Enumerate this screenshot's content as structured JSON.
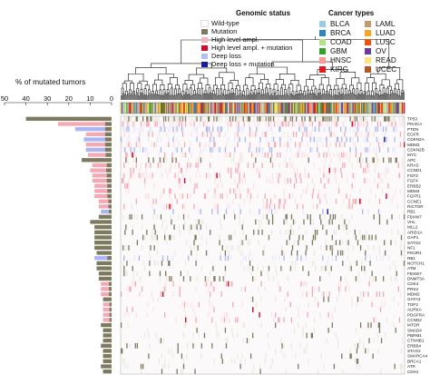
{
  "chart_data": {
    "type": "heatmap",
    "title": "",
    "xlabel": "",
    "ylabel": "",
    "bar_panel": {
      "title": "% of mutated tumors",
      "axis_ticks": [
        "50",
        "40",
        "30",
        "20",
        "10",
        "0"
      ],
      "xlim": [
        50,
        0
      ]
    },
    "genomic_status_legend": {
      "title": "Genomic status",
      "entries": [
        {
          "label": "Wild-type",
          "color": "#ffffff"
        },
        {
          "label": "Mutation",
          "color": "#7d7a60"
        },
        {
          "label": "High level ampl.",
          "color": "#f6b6bf"
        },
        {
          "label": "High level ampl. + mutation",
          "color": "#c8102e"
        },
        {
          "label": "Deep loss",
          "color": "#b3bff5"
        },
        {
          "label": "Deep loss + mutation",
          "color": "#1a1aa0"
        }
      ]
    },
    "cancer_types_legend": {
      "title": "Cancer types",
      "entries": [
        {
          "label": "BLCA",
          "color": "#9ecae1"
        },
        {
          "label": "LAML",
          "color": "#c49a6c"
        },
        {
          "label": "BRCA",
          "color": "#3182bd"
        },
        {
          "label": "LUAD",
          "color": "#f5a623"
        },
        {
          "label": "COAD",
          "color": "#b2df8a"
        },
        {
          "label": "LUSC",
          "color": "#e6550d"
        },
        {
          "label": "GBM",
          "color": "#33a02c"
        },
        {
          "label": "OV",
          "color": "#6a3d9a"
        },
        {
          "label": "HNSC",
          "color": "#fb9a99"
        },
        {
          "label": "READ",
          "color": "#ffe27a"
        },
        {
          "label": "KIRC",
          "color": "#e31a1c"
        },
        {
          "label": "UCEC",
          "color": "#b15928"
        }
      ]
    },
    "genes": [
      "TP53",
      "PIK3CA",
      "PTEN",
      "EGFR",
      "CDKN2A",
      "MDM2",
      "CDKN2B",
      "MYC",
      "APC",
      "KRAS",
      "CCND1",
      "FGF3",
      "FGF4",
      "ERBB2",
      "MDM4",
      "FGFR1",
      "CCNE1",
      "RICTOR",
      "RB1",
      "FBXW7",
      "VHL",
      "MLL2",
      "ARID1A",
      "GAP1",
      "SATG2",
      "NF1",
      "PIK3R1",
      "RB1",
      "NOTCH1",
      "ATM",
      "FBXW7",
      "DNMT3A",
      "CDK4",
      "PRS2",
      "MDM2",
      "GATA3",
      "TOP2",
      "AURKA",
      "PDGFRA",
      "CCND2",
      "MTOR",
      "SMAD4",
      "PBRM1",
      "CTNNB1",
      "ERBB4",
      "STAG2",
      "SMARCA4",
      "BRCA1",
      "ATR",
      "CDH1"
    ],
    "percent_mutated": [
      40,
      25,
      17,
      12,
      13,
      12,
      12,
      11,
      14,
      9,
      10,
      9,
      9,
      8,
      8,
      8,
      6,
      6,
      5,
      6,
      10,
      8,
      8,
      8,
      8,
      8,
      7,
      8,
      7,
      7,
      6,
      6,
      5,
      5,
      5,
      4,
      4,
      4,
      4,
      4,
      5,
      4,
      4,
      4,
      5,
      4,
      4,
      4,
      5,
      4
    ],
    "dominant_status": [
      "Mutation",
      "High level ampl.",
      "Deep loss",
      "High level ampl.",
      "Deep loss",
      "High level ampl.",
      "Deep loss",
      "High level ampl.",
      "Mutation",
      "High level ampl.",
      "High level ampl.",
      "High level ampl.",
      "High level ampl.",
      "High level ampl.",
      "High level ampl.",
      "High level ampl.",
      "High level ampl.",
      "High level ampl.",
      "Deep loss",
      "Mutation",
      "Mutation",
      "Mutation",
      "Mutation",
      "Mutation",
      "Mutation",
      "Mutation",
      "Mutation",
      "Deep loss",
      "Mutation",
      "Mutation",
      "Mutation",
      "Mutation",
      "High level ampl.",
      "High level ampl.",
      "High level ampl.",
      "Mutation",
      "High level ampl.",
      "High level ampl.",
      "High level ampl.",
      "High level ampl.",
      "Mutation",
      "Mutation",
      "Mutation",
      "Mutation",
      "Mutation",
      "Mutation",
      "Mutation",
      "Mutation",
      "Mutation",
      "Mutation"
    ]
  }
}
